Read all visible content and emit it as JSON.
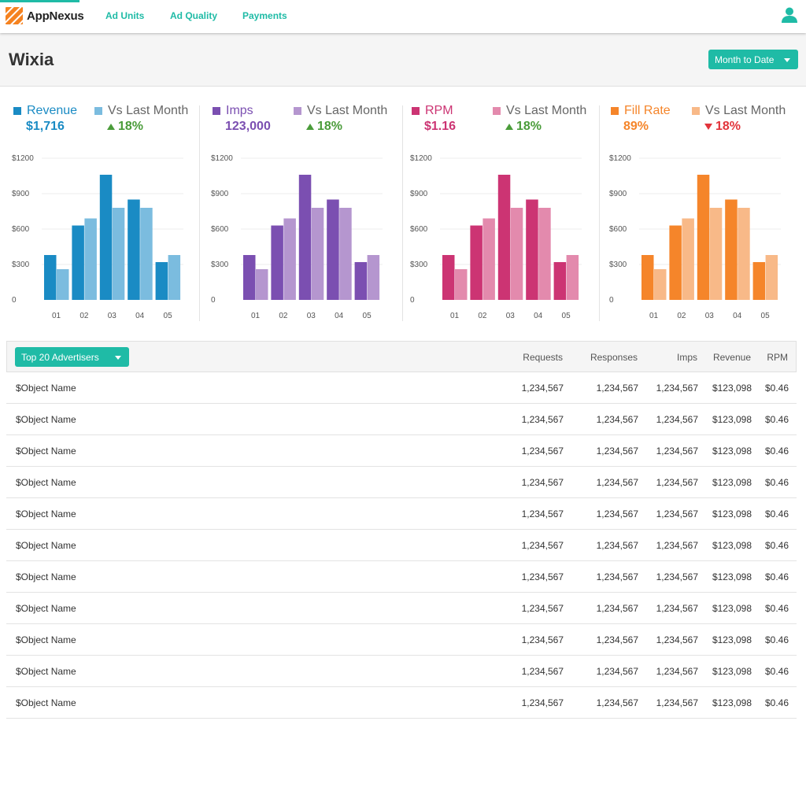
{
  "nav": {
    "brand": "AppNexus",
    "links": [
      "Ad Units",
      "Ad Quality",
      "Payments"
    ]
  },
  "header": {
    "title": "Wixia",
    "date_range": "Month to Date"
  },
  "colors": {
    "teal": "#1fbba6",
    "up": "#4a9c3a",
    "down": "#e2343b"
  },
  "metrics": [
    {
      "label": "Revenue",
      "value": "$1,716",
      "compare_label": "Vs Last Month",
      "change": "18%",
      "direction": "up",
      "color": "#1a8bc4",
      "color_light": "#7bbcdf",
      "text_color": "#1a8bc4"
    },
    {
      "label": "Imps",
      "value": "123,000",
      "compare_label": "Vs Last Month",
      "change": "18%",
      "direction": "up",
      "color": "#7b4fb1",
      "color_light": "#b596cf",
      "text_color": "#7b4fb1"
    },
    {
      "label": "RPM",
      "value": "$1.16",
      "compare_label": "Vs Last Month",
      "change": "18%",
      "direction": "up",
      "color": "#cc3473",
      "color_light": "#e38aad",
      "text_color": "#cc3473"
    },
    {
      "label": "Fill Rate",
      "value": "89%",
      "compare_label": "Vs Last Month",
      "change": "18%",
      "direction": "down",
      "color": "#f5852a",
      "color_light": "#f8b988",
      "text_color": "#f5852a"
    }
  ],
  "chart_data": {
    "type": "bar",
    "categories": [
      "01",
      "02",
      "03",
      "04",
      "05"
    ],
    "series": [
      {
        "values": [
          380,
          630,
          1060,
          850,
          320
        ]
      },
      {
        "values": [
          260,
          690,
          780,
          780,
          380
        ]
      }
    ],
    "ylim": [
      0,
      1200
    ],
    "yticks": [
      "0",
      "$300",
      "$600",
      "$900",
      "$1200"
    ],
    "grid": true
  },
  "table": {
    "dropdown_label": "Top 20 Advertisers",
    "columns": [
      "Requests",
      "Responses",
      "Imps",
      "Revenue",
      "RPM"
    ],
    "rows": [
      {
        "name": "$Object Name",
        "requests": "1,234,567",
        "responses": "1,234,567",
        "imps": "1,234,567",
        "revenue": "$123,098",
        "rpm": "$0.46"
      },
      {
        "name": "$Object Name",
        "requests": "1,234,567",
        "responses": "1,234,567",
        "imps": "1,234,567",
        "revenue": "$123,098",
        "rpm": "$0.46"
      },
      {
        "name": "$Object Name",
        "requests": "1,234,567",
        "responses": "1,234,567",
        "imps": "1,234,567",
        "revenue": "$123,098",
        "rpm": "$0.46"
      },
      {
        "name": "$Object Name",
        "requests": "1,234,567",
        "responses": "1,234,567",
        "imps": "1,234,567",
        "revenue": "$123,098",
        "rpm": "$0.46"
      },
      {
        "name": "$Object Name",
        "requests": "1,234,567",
        "responses": "1,234,567",
        "imps": "1,234,567",
        "revenue": "$123,098",
        "rpm": "$0.46"
      },
      {
        "name": "$Object Name",
        "requests": "1,234,567",
        "responses": "1,234,567",
        "imps": "1,234,567",
        "revenue": "$123,098",
        "rpm": "$0.46"
      },
      {
        "name": "$Object Name",
        "requests": "1,234,567",
        "responses": "1,234,567",
        "imps": "1,234,567",
        "revenue": "$123,098",
        "rpm": "$0.46"
      },
      {
        "name": "$Object Name",
        "requests": "1,234,567",
        "responses": "1,234,567",
        "imps": "1,234,567",
        "revenue": "$123,098",
        "rpm": "$0.46"
      },
      {
        "name": "$Object Name",
        "requests": "1,234,567",
        "responses": "1,234,567",
        "imps": "1,234,567",
        "revenue": "$123,098",
        "rpm": "$0.46"
      },
      {
        "name": "$Object Name",
        "requests": "1,234,567",
        "responses": "1,234,567",
        "imps": "1,234,567",
        "revenue": "$123,098",
        "rpm": "$0.46"
      },
      {
        "name": "$Object Name",
        "requests": "1,234,567",
        "responses": "1,234,567",
        "imps": "1,234,567",
        "revenue": "$123,098",
        "rpm": "$0.46"
      }
    ]
  }
}
